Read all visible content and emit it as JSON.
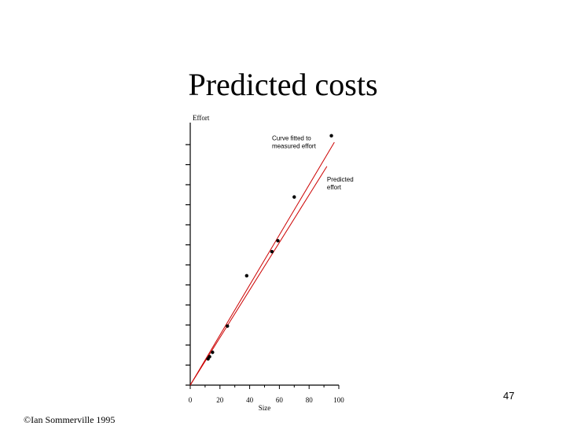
{
  "slide": {
    "title": "Predicted costs",
    "page_number": "47",
    "copyright": "©Ian Sommerville 1995"
  },
  "chart_data": {
    "type": "scatter",
    "xlabel": "Size",
    "ylabel": "Effort",
    "xlim": [
      0,
      100
    ],
    "ylim": [
      0,
      12
    ],
    "x_ticks": [
      0,
      20,
      40,
      60,
      80,
      100
    ],
    "y_tick_count": 12,
    "line_color": "#cc0000",
    "point_color": "#000000",
    "points": [
      {
        "x": 12,
        "y": 1.2
      },
      {
        "x": 13,
        "y": 1.3
      },
      {
        "x": 15,
        "y": 1.5
      },
      {
        "x": 25,
        "y": 2.7
      },
      {
        "x": 38,
        "y": 5.0
      },
      {
        "x": 55,
        "y": 6.1
      },
      {
        "x": 59,
        "y": 6.6
      },
      {
        "x": 70,
        "y": 8.6
      },
      {
        "x": 95,
        "y": 11.4
      }
    ],
    "lines": [
      {
        "name": "Curve fitted to measured effort",
        "from": {
          "x": 0,
          "y": 0
        },
        "to": {
          "x": 97,
          "y": 11.1
        }
      },
      {
        "name": "Predicted effort",
        "from": {
          "x": 0,
          "y": 0
        },
        "to": {
          "x": 92,
          "y": 10.0
        }
      }
    ],
    "annotations": [
      {
        "lines": [
          "Curve fitted to",
          "measured effort"
        ],
        "x": 55,
        "y": 11.2
      },
      {
        "lines": [
          "Predicted",
          "effort"
        ],
        "x": 92,
        "y": 9.3
      }
    ]
  }
}
